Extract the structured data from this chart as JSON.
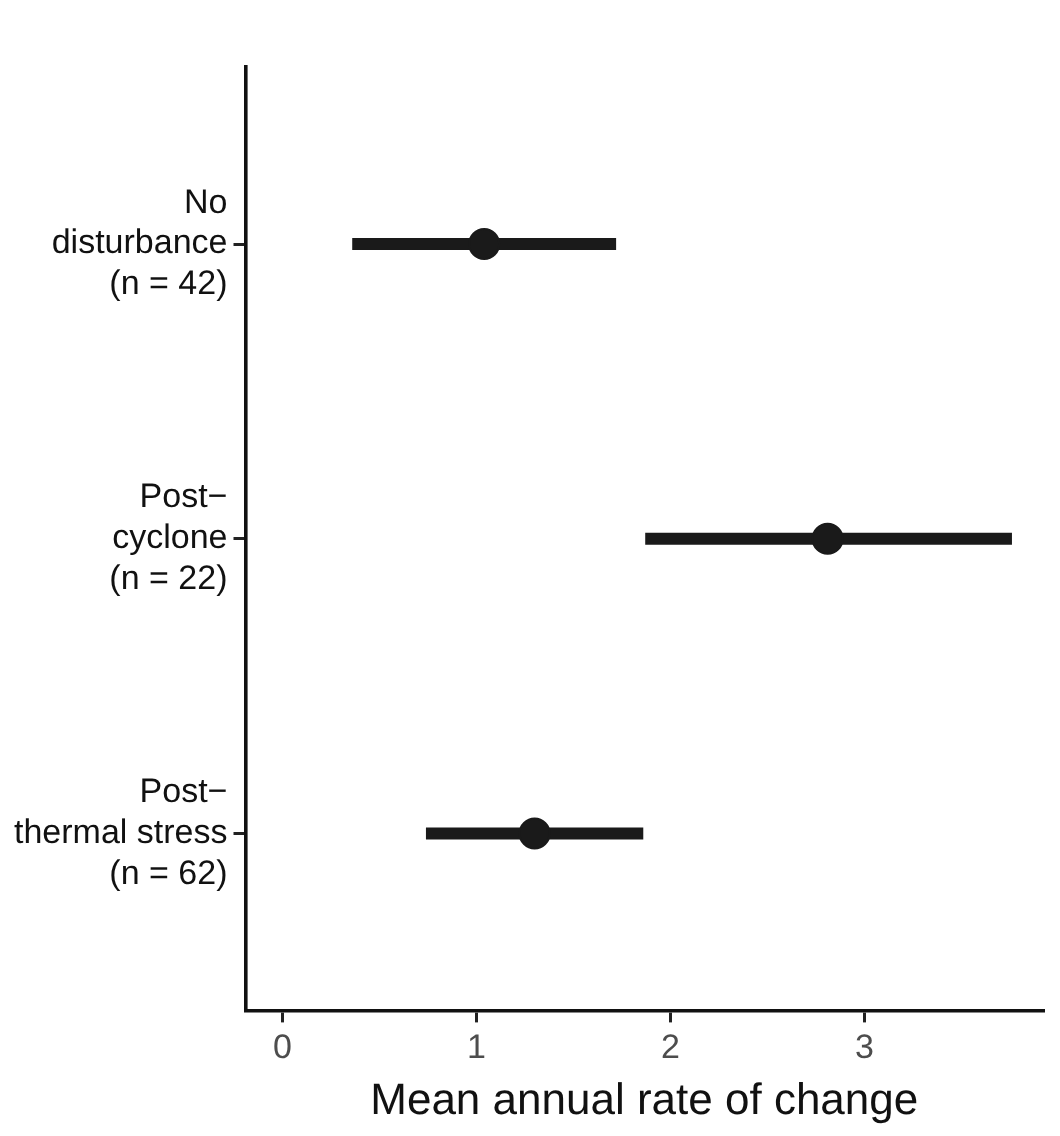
{
  "chart_data": {
    "type": "scatter",
    "orientation": "horizontal",
    "xlabel": "Mean annual rate of change",
    "categories": [
      "No\ndisturbance\n(n = 42)",
      "Post−\ncyclone\n(n = 22)",
      "Post−\nthermal stress\n(n = 62)"
    ],
    "values": [
      1.04,
      2.81,
      1.3
    ],
    "errors": [
      [
        0.36,
        1.72
      ],
      [
        1.87,
        3.76
      ],
      [
        0.74,
        1.86
      ]
    ],
    "color": "#1a1a1a",
    "marker": "circle",
    "xlim": [
      -0.19,
      3.92
    ],
    "xticks": [
      0,
      1,
      2,
      3
    ]
  }
}
